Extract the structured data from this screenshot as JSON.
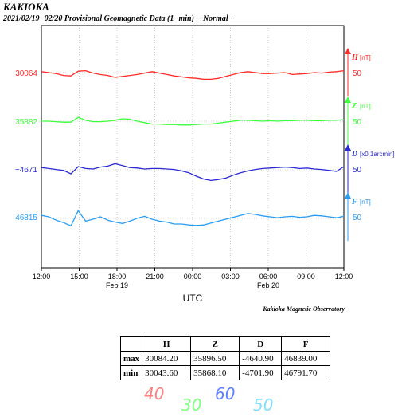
{
  "header": {
    "station": "KAKIOKA",
    "subtitle": "2021/02/19−02/20  Provisional Geomagnetic Data (1−min)  − Normal −"
  },
  "chart_data": {
    "type": "line",
    "x_range": [
      "2021-02-19 12:00",
      "2021-02-20 12:00"
    ],
    "x_ticks": [
      "12:00",
      "15:00",
      "18:00",
      "21:00",
      "00:00",
      "03:00",
      "06:00",
      "09:00",
      "12:00"
    ],
    "x_date_labels": [
      {
        "at": "18:00",
        "label": "Feb 19"
      },
      {
        "at": "06:00",
        "label": "Feb 20"
      }
    ],
    "xlabel": "UTC",
    "credit": "Kakioka Magnetic Observatory",
    "grid": true,
    "series": [
      {
        "name": "H",
        "unit": "[nT]",
        "left_label": "30064",
        "scale_label": "50",
        "color": "#ff2a2a",
        "values": [
          30066,
          30064,
          30062,
          30058,
          30057,
          30067,
          30068,
          30063,
          30060,
          30058,
          30054,
          30056,
          30058,
          30060,
          30063,
          30066,
          30063,
          30060,
          30057,
          30055,
          30053,
          30052,
          30050,
          30050,
          30052,
          30056,
          30060,
          30064,
          30066,
          30064,
          30062,
          30062,
          30063,
          30064,
          30060,
          30061,
          30062,
          30064,
          30063,
          30065,
          30066,
          30068
        ]
      },
      {
        "name": "Z",
        "unit": "[nT]",
        "left_label": "35882",
        "scale_label": "50",
        "color": "#3dff3d",
        "values": [
          35882,
          35882,
          35881,
          35880,
          35880,
          35890,
          35884,
          35881,
          35881,
          35882,
          35884,
          35887,
          35886,
          35882,
          35879,
          35876,
          35876,
          35875,
          35875,
          35874,
          35874,
          35875,
          35876,
          35876,
          35878,
          35880,
          35882,
          35884,
          35884,
          35883,
          35882,
          35883,
          35882,
          35883,
          35883,
          35884,
          35884,
          35883,
          35883,
          35884,
          35884,
          35885
        ]
      },
      {
        "name": "D",
        "unit": "[x0.1arcmin]",
        "left_label": "−4671",
        "scale_label": "50",
        "color": "#2a2ad4",
        "values": [
          -4668,
          -4670,
          -4672,
          -4674,
          -4681,
          -4666,
          -4670,
          -4671,
          -4667,
          -4665,
          -4660,
          -4664,
          -4668,
          -4669,
          -4671,
          -4670,
          -4670,
          -4671,
          -4672,
          -4675,
          -4679,
          -4686,
          -4692,
          -4695,
          -4693,
          -4690,
          -4684,
          -4679,
          -4675,
          -4672,
          -4670,
          -4669,
          -4668,
          -4667,
          -4668,
          -4670,
          -4669,
          -4671,
          -4672,
          -4674,
          -4676,
          -4666
        ]
      },
      {
        "name": "F",
        "unit": "[nT]",
        "left_label": "46815",
        "scale_label": "50",
        "color": "#2a9cf2",
        "values": [
          46818,
          46815,
          46808,
          46803,
          46796,
          46828,
          46806,
          46810,
          46815,
          46808,
          46804,
          46801,
          46806,
          46812,
          46816,
          46810,
          46806,
          46804,
          46800,
          46800,
          46798,
          46797,
          46798,
          46802,
          46806,
          46810,
          46814,
          46818,
          46822,
          46820,
          46817,
          46815,
          46813,
          46815,
          46816,
          46814,
          46815,
          46818,
          46817,
          46815,
          46813,
          46816
        ]
      }
    ]
  },
  "table": {
    "headers": [
      "",
      "H",
      "Z",
      "D",
      "F"
    ],
    "rows": [
      {
        "label": "max",
        "values": [
          "30084.20",
          "35896.50",
          "-4640.90",
          "46839.00"
        ]
      },
      {
        "label": "min",
        "values": [
          "30043.60",
          "35868.10",
          "-4701.90",
          "46791.70"
        ]
      }
    ]
  },
  "footer_marks": [
    {
      "text": "40",
      "color": "#ff8080"
    },
    {
      "text": "30",
      "color": "#80ff80"
    },
    {
      "text": "60",
      "color": "#6080ff"
    },
    {
      "text": "50",
      "color": "#80e0ff"
    }
  ]
}
